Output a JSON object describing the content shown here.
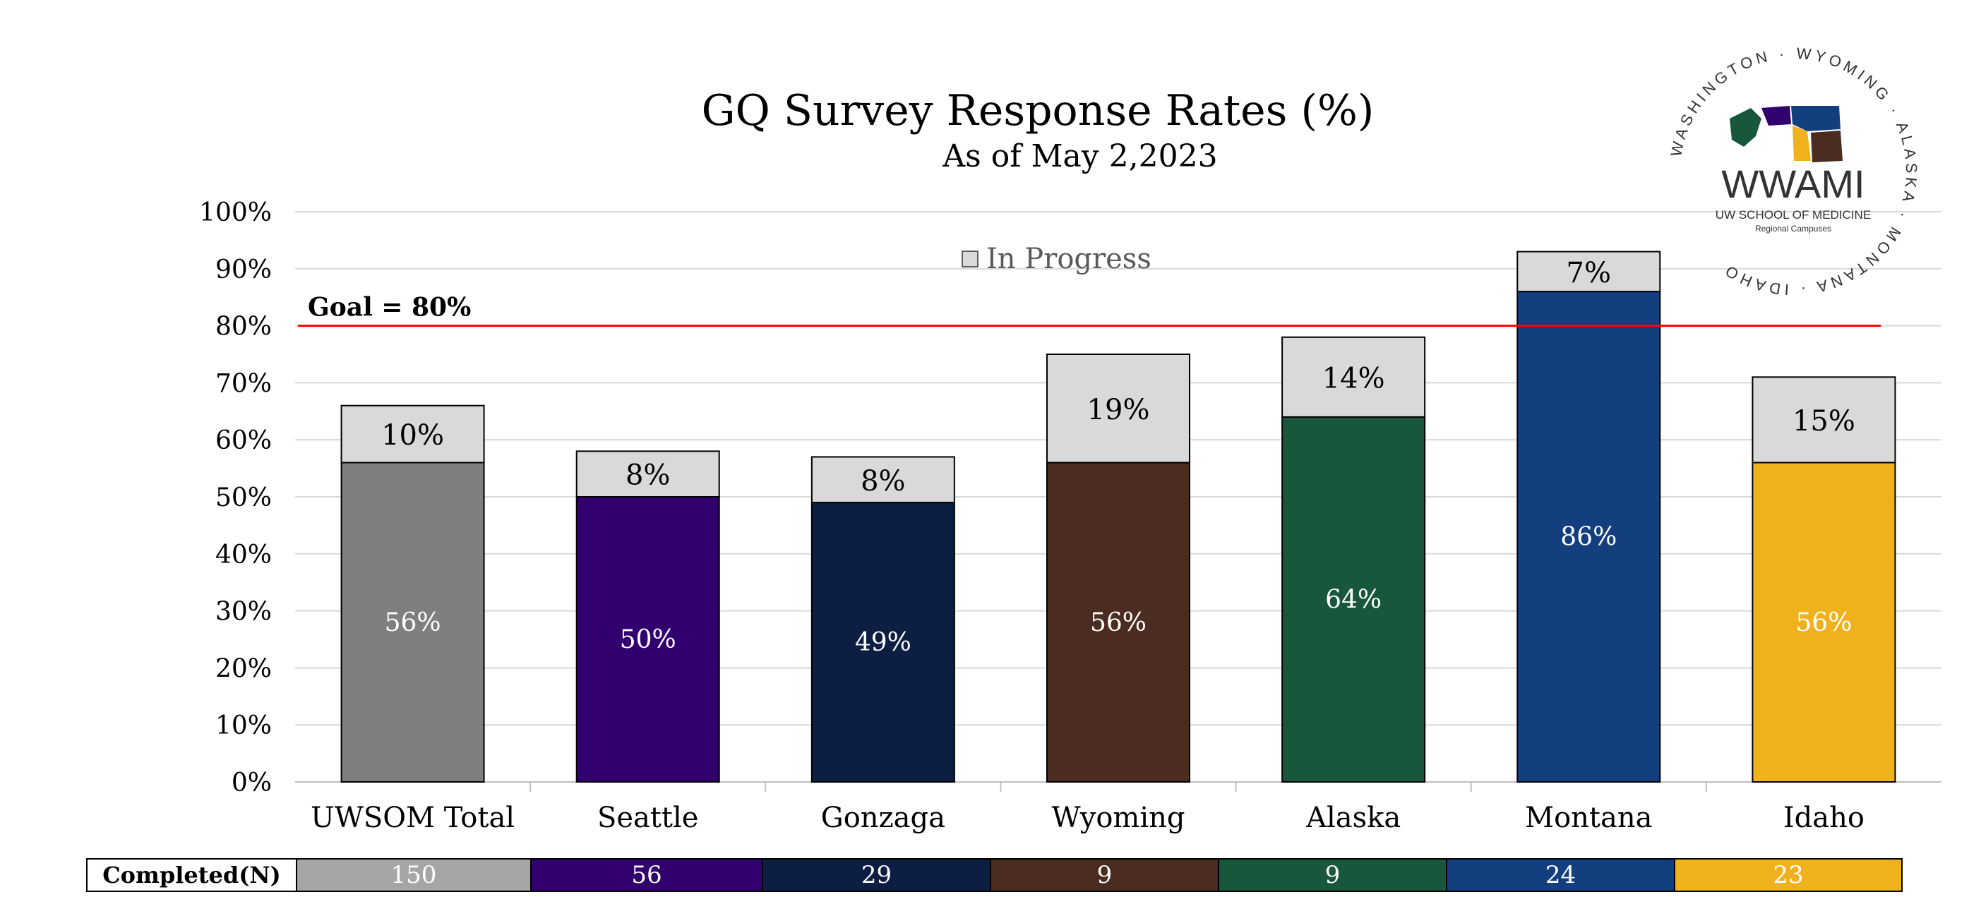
{
  "chart_data": {
    "type": "bar",
    "stacked": true,
    "title": "GQ Survey Response Rates (%)",
    "subtitle": "As of May 2,2023",
    "categories": [
      "UWSOM Total",
      "Seattle",
      "Gonzaga",
      "Wyoming",
      "Alaska",
      "Montana",
      "Idaho"
    ],
    "series": [
      {
        "name": "",
        "values": [
          56,
          50,
          49,
          56,
          64,
          86,
          56
        ],
        "labels": [
          "56%",
          "50%",
          "49%",
          "56%",
          "64%",
          "86%",
          "56%"
        ],
        "colors": [
          "#7f7f7f",
          "#32006e",
          "#0c1e42",
          "#4a2c20",
          "#19573d",
          "#143f7f",
          "#f0b21c"
        ]
      },
      {
        "name": "In Progress",
        "values": [
          10,
          8,
          8,
          19,
          14,
          7,
          15
        ],
        "labels": [
          "10%",
          "8%",
          "8%",
          "19%",
          "14%",
          "7%",
          "15%"
        ],
        "color": "#d9d9d9"
      }
    ],
    "ylim": [
      0,
      100
    ],
    "yticks": [
      "0%",
      "10%",
      "20%",
      "30%",
      "40%",
      "50%",
      "60%",
      "70%",
      "80%",
      "90%",
      "100%"
    ],
    "goal": {
      "value": 80,
      "label": "Goal = 80%",
      "color": "#ff0000"
    },
    "legend": {
      "position": "top-center",
      "label": "In Progress"
    },
    "grid": true
  },
  "completed_table": {
    "label": "Completed(N)",
    "values": [
      "150",
      "56",
      "29",
      "9",
      "9",
      "24",
      "23"
    ],
    "colors": [
      "#a6a6a6",
      "#32006e",
      "#0c1e42",
      "#4a2c20",
      "#19573d",
      "#143f7f",
      "#f0b21c"
    ]
  },
  "logo": {
    "name": "WWAMI",
    "school": "UW SCHOOL OF MEDICINE",
    "sub": "Regional Campuses",
    "ring_text": "WASHINGTON · WYOMING · ALASKA · MONTANA · IDAHO"
  }
}
